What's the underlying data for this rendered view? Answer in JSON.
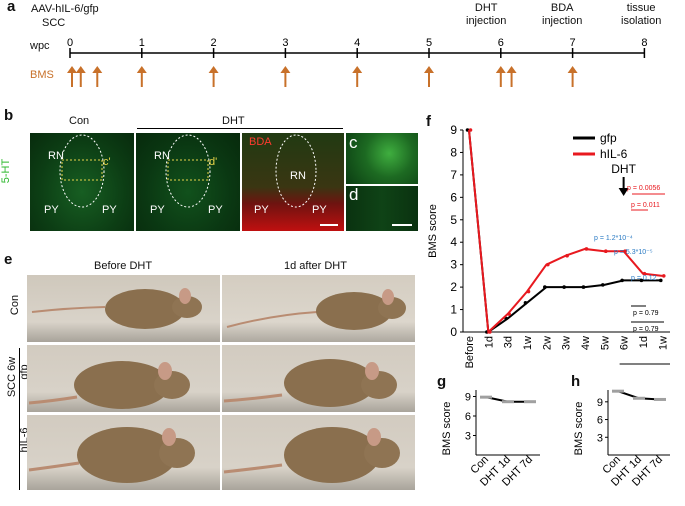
{
  "panel_a": {
    "label": "a",
    "virus": "AAV-hIL-6/gfp",
    "scc": "SCC",
    "wpc": "wpc",
    "ticks": [
      "0",
      "1",
      "2",
      "3",
      "4",
      "5",
      "6",
      "7",
      "8"
    ],
    "dht_event": "DHT\ninjection",
    "bda_event": "BDA\ninjection",
    "tissue_event": "tissue\nisolation",
    "bms": "BMS",
    "arrow_color": "#c8712a"
  },
  "panel_b": {
    "label": "b",
    "con": "Con",
    "dht": "DHT",
    "bda": "BDA",
    "ht": "5-HT",
    "rn": "RN",
    "py": "PY",
    "cprime": "c'",
    "dprime": "d'"
  },
  "panel_c": {
    "label": "c"
  },
  "panel_d": {
    "label": "d"
  },
  "panel_e": {
    "label": "e",
    "before": "Before DHT",
    "after": "1d after DHT",
    "con": "Con",
    "scc6w": "SCC 6w",
    "gfp": "gfp",
    "hil6": "hIL-6"
  },
  "panel_f": {
    "label": "f",
    "dht_marker": "DHT",
    "dht_group": "DHT",
    "pvals_red": [
      "p = 0.0056",
      "p = 0.011"
    ],
    "pvals_blue": [
      "p = 1.2*10⁻⁴",
      "p = 5.3*10⁻⁵",
      "p = 0.12"
    ],
    "pvals_black": [
      "p = 0.79",
      "p = 0.79"
    ]
  },
  "panel_g": {
    "label": "g",
    "ylabel": "BMS score",
    "ticks": [
      "9",
      "6",
      "3"
    ],
    "xcats": [
      "Con",
      "DHT 1d",
      "DHT 7d"
    ]
  },
  "panel_h": {
    "label": "h",
    "ylabel": "BMS score",
    "ticks": [
      "9",
      "6",
      "3"
    ],
    "xcats": [
      "Con",
      "DHT 1d",
      "DHT 7d"
    ]
  },
  "chart_data": [
    {
      "type": "line",
      "title": "",
      "xlabel": "",
      "ylabel": "BMS score",
      "categories": [
        "Before",
        "1d",
        "3d",
        "1w",
        "2w",
        "3w",
        "4w",
        "5w",
        "6w",
        "1d",
        "1w"
      ],
      "ylim": [
        0,
        9
      ],
      "yticks": [
        0,
        1,
        2,
        3,
        4,
        5,
        6,
        7,
        8,
        9
      ],
      "legend": "top-right",
      "series": [
        {
          "name": "gfp",
          "color": "#000000",
          "values": [
            9,
            0,
            0.6,
            1.3,
            2.0,
            2.0,
            2.0,
            2.1,
            2.3,
            2.3,
            2.3
          ]
        },
        {
          "name": "hIL-6",
          "color": "#e8191f",
          "values": [
            9,
            0,
            0.8,
            1.8,
            3.0,
            3.4,
            3.7,
            3.6,
            3.6,
            2.6,
            2.5
          ]
        }
      ]
    },
    {
      "type": "line",
      "ylabel": "BMS score",
      "categories": [
        "Con",
        "DHT 1d",
        "DHT 7d"
      ],
      "ylim": [
        0,
        10
      ],
      "series": [
        {
          "name": "gfp",
          "values": [
            8.9,
            8.2,
            8.2
          ]
        }
      ]
    },
    {
      "type": "line",
      "ylabel": "BMS score",
      "categories": [
        "Con",
        "DHT 1d",
        "DHT 7d"
      ],
      "ylim": [
        0,
        11
      ],
      "series": [
        {
          "name": "hIL-6",
          "values": [
            10.8,
            9.6,
            9.4
          ]
        }
      ]
    }
  ]
}
